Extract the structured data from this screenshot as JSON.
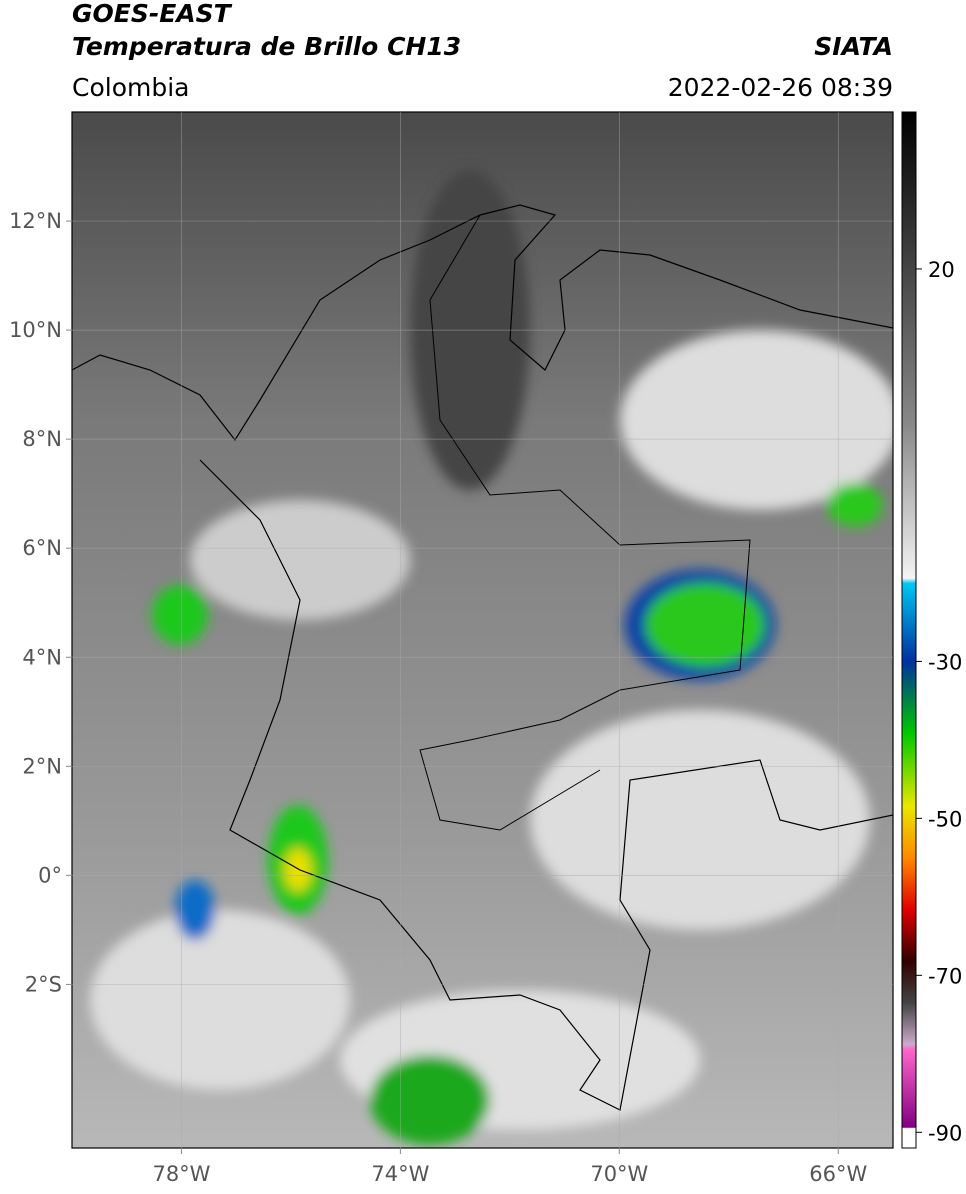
{
  "header": {
    "line1": "GOES-EAST",
    "line2": "Temperatura de Brillo CH13",
    "region": "Colombia",
    "source": "SIATA",
    "datetime": "2022-02-26 08:39"
  },
  "map": {
    "xlim": [
      -80,
      -65
    ],
    "ylim": [
      -5,
      14
    ],
    "xticks": [
      {
        "value": -78,
        "label": "78°W"
      },
      {
        "value": -74,
        "label": "74°W"
      },
      {
        "value": -70,
        "label": "70°W"
      },
      {
        "value": -66,
        "label": "66°W"
      }
    ],
    "yticks": [
      {
        "value": 12,
        "label": "12°N"
      },
      {
        "value": 10,
        "label": "10°N"
      },
      {
        "value": 8,
        "label": "8°N"
      },
      {
        "value": 6,
        "label": "6°N"
      },
      {
        "value": 4,
        "label": "4°N"
      },
      {
        "value": 2,
        "label": "2°N"
      },
      {
        "value": 0,
        "label": "0°"
      },
      {
        "value": -2,
        "label": "2°S"
      }
    ],
    "grid": true
  },
  "colorbar": {
    "lim": [
      -92,
      40
    ],
    "ticks": [
      20,
      -30,
      -50,
      -70,
      -90
    ]
  }
}
